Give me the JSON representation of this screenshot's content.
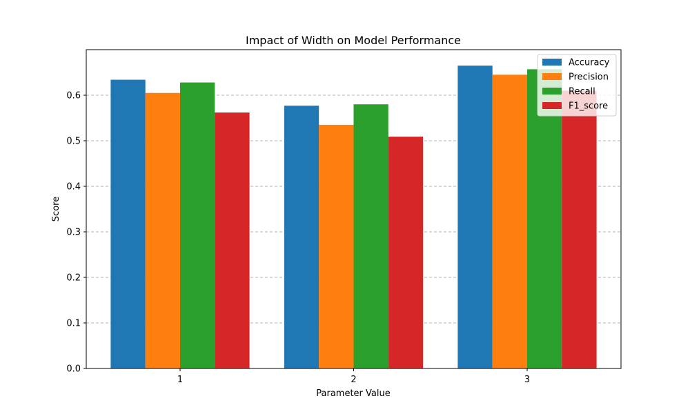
{
  "chart_data": {
    "type": "bar",
    "title": "Impact of Width on Model Performance",
    "xlabel": "Parameter Value",
    "ylabel": "Score",
    "categories": [
      "1",
      "2",
      "3"
    ],
    "ylim": [
      0,
      0.7
    ],
    "yticks": [
      "0.0",
      "0.1",
      "0.2",
      "0.3",
      "0.4",
      "0.5",
      "0.6"
    ],
    "grid": "y-dashed",
    "legend_position": "top-right",
    "series": [
      {
        "name": "Accuracy",
        "color": "#1f77b4",
        "values": [
          0.634,
          0.577,
          0.665
        ]
      },
      {
        "name": "Precision",
        "color": "#ff7f0e",
        "values": [
          0.605,
          0.535,
          0.645
        ]
      },
      {
        "name": "Recall",
        "color": "#2ca02c",
        "values": [
          0.628,
          0.58,
          0.657
        ]
      },
      {
        "name": "F1_score",
        "color": "#d62728",
        "values": [
          0.562,
          0.509,
          0.61
        ]
      }
    ]
  }
}
